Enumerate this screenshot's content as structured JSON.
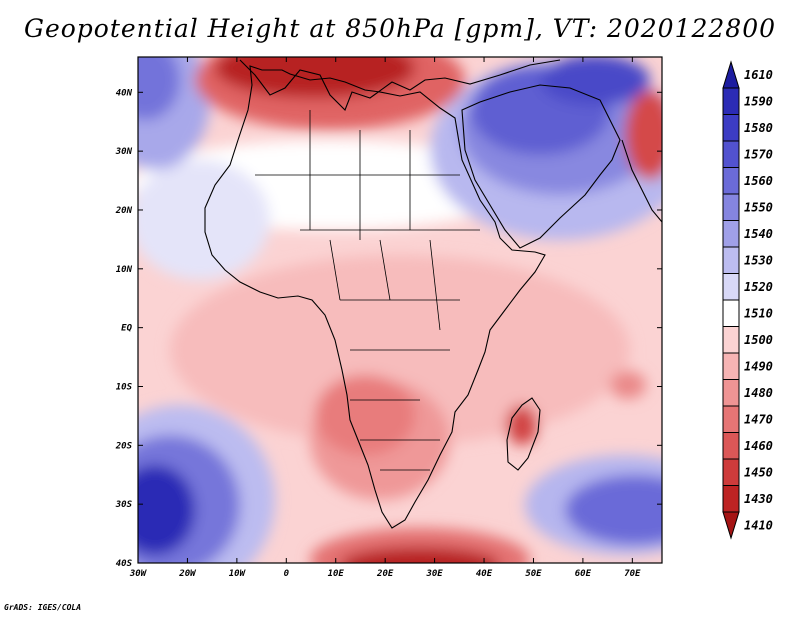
{
  "chart_data": {
    "type": "heatmap",
    "title": "Geopotential Height at 850hPa [gpm], VT: 2020122800",
    "variable": "Geopotential Height",
    "level": "850hPa",
    "units": "gpm",
    "valid_time": "2020122800",
    "x_axis": {
      "range": [
        -30,
        76
      ],
      "ticks": [
        -30,
        -20,
        -10,
        0,
        10,
        20,
        30,
        40,
        50,
        60,
        70
      ],
      "tick_labels": [
        "30W",
        "20W",
        "10W",
        "0",
        "10E",
        "20E",
        "30E",
        "40E",
        "50E",
        "60E",
        "70E"
      ]
    },
    "y_axis": {
      "range": [
        -40,
        46
      ],
      "ticks": [
        40,
        30,
        20,
        10,
        0,
        -10,
        -20,
        -30,
        -40
      ],
      "tick_labels": [
        "40N",
        "30N",
        "20N",
        "10N",
        "EQ",
        "10S",
        "20S",
        "30S",
        "40S"
      ]
    },
    "colorbar": {
      "levels": [
        "1610",
        "1590",
        "1580",
        "1570",
        "1560",
        "1550",
        "1540",
        "1530",
        "1520",
        "1510",
        "1500",
        "1490",
        "1480",
        "1470",
        "1460",
        "1450",
        "1430",
        "1410"
      ],
      "colors": [
        "#1d1da0",
        "#2b2bb5",
        "#3c3cc4",
        "#5252cf",
        "#6b6bd8",
        "#8585e0",
        "#a0a0e8",
        "#bcbcf0",
        "#d8d8f7",
        "#ffffff",
        "#fbd3d3",
        "#f6b4b4",
        "#ef9494",
        "#e67575",
        "#db5757",
        "#ce3b3b",
        "#bd2323",
        "#a51414"
      ]
    },
    "features": [
      {
        "type": "high",
        "lon": -25,
        "lat": -32,
        "max_gpm": 1610
      },
      {
        "type": "high",
        "lon": 70,
        "lat": -30,
        "max_gpm": 1560
      },
      {
        "type": "high",
        "lon": 45,
        "lat": 33,
        "max_gpm": 1580
      },
      {
        "type": "high",
        "lon": -28,
        "lat": 38,
        "max_gpm": 1540
      },
      {
        "type": "low",
        "lon": 15,
        "lat": 43,
        "min_gpm": 1430
      },
      {
        "type": "low",
        "lon": 35,
        "lat": -40,
        "min_gpm": 1430
      },
      {
        "type": "low",
        "lon": 75,
        "lat": 32,
        "min_gpm": 1460
      },
      {
        "type": "low",
        "lon": 47,
        "lat": -17,
        "min_gpm": 1460
      }
    ]
  },
  "footer": {
    "credit": "GrADS: IGES/COLA"
  }
}
